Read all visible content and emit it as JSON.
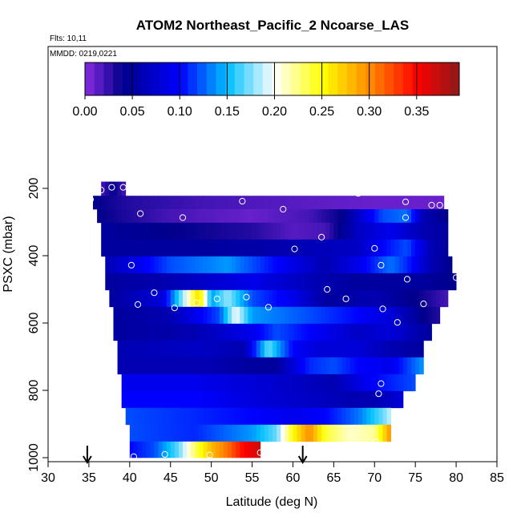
{
  "title": "ATOM2 Northeast_Pacific_2 Ncoarse_LAS",
  "flights_label": "Flts: 10,11",
  "mmdd_label": "MMDD: 0219,0221",
  "chart_data": {
    "type": "heatmap",
    "xlabel": "Latitude (deg N)",
    "ylabel": "PSXC (mbar)",
    "xlim": [
      30,
      85
    ],
    "ylim": [
      1000,
      100
    ],
    "x_ticks": [
      30,
      35,
      40,
      45,
      50,
      55,
      60,
      65,
      70,
      75,
      80,
      85
    ],
    "y_ticks": [
      200,
      400,
      600,
      800,
      1000
    ],
    "colorbar": {
      "range": [
        0,
        0.395
      ],
      "ticks": [
        0.0,
        0.05,
        0.1,
        0.15,
        0.2,
        0.25,
        0.3,
        0.35
      ],
      "tick_labels": [
        "0.00",
        "0.05",
        "0.10",
        "0.15",
        "0.20",
        "0.25",
        "0.30",
        "0.35"
      ],
      "stops": [
        {
          "v": 0.0,
          "color": "#8a2be2"
        },
        {
          "v": 0.04,
          "color": "#00008b"
        },
        {
          "v": 0.1,
          "color": "#0000ff"
        },
        {
          "v": 0.15,
          "color": "#00bfff"
        },
        {
          "v": 0.2,
          "color": "#ffffff"
        },
        {
          "v": 0.25,
          "color": "#ffff00"
        },
        {
          "v": 0.3,
          "color": "#ff8c00"
        },
        {
          "v": 0.35,
          "color": "#ff0000"
        },
        {
          "v": 0.395,
          "color": "#8b1a1a"
        }
      ]
    },
    "bands": [
      {
        "p0": 180,
        "p1": 222,
        "lat0": 36.5,
        "lat1": 39.5,
        "cells": [
          [
            36.5,
            0.02
          ],
          [
            38.0,
            0.04
          ],
          [
            39.5,
            0.02
          ]
        ]
      },
      {
        "p0": 222,
        "p1": 262,
        "lat0": 35.5,
        "lat1": 78.5,
        "cells": [
          [
            35.5,
            0.04
          ],
          [
            40,
            0.03
          ],
          [
            50,
            0.02
          ],
          [
            60,
            0.015
          ],
          [
            70,
            0.01
          ],
          [
            78.5,
            0.01
          ]
        ]
      },
      {
        "p0": 262,
        "p1": 302,
        "lat0": 36.0,
        "lat1": 79.0,
        "cells": [
          [
            36,
            0.04
          ],
          [
            45,
            0.02
          ],
          [
            55,
            0.01
          ],
          [
            62,
            0.02
          ],
          [
            66,
            0.04
          ],
          [
            71,
            0.12
          ],
          [
            74,
            0.13
          ],
          [
            76,
            0.06
          ],
          [
            79,
            0.04
          ]
        ]
      },
      {
        "p0": 302,
        "p1": 352,
        "lat0": 36.5,
        "lat1": 79.0,
        "cells": [
          [
            36.5,
            0.05
          ],
          [
            45,
            0.04
          ],
          [
            55,
            0.03
          ],
          [
            60,
            0.015
          ],
          [
            64,
            0.02
          ],
          [
            68,
            0.07
          ],
          [
            72,
            0.09
          ],
          [
            76,
            0.06
          ],
          [
            79,
            0.05
          ]
        ]
      },
      {
        "p0": 352,
        "p1": 402,
        "lat0": 36.5,
        "lat1": 79.0,
        "cells": [
          [
            36.5,
            0.05
          ],
          [
            50,
            0.05
          ],
          [
            60,
            0.06
          ],
          [
            68,
            0.07
          ],
          [
            71,
            0.1
          ],
          [
            74,
            0.12
          ],
          [
            77,
            0.06
          ],
          [
            79,
            0.05
          ]
        ]
      },
      {
        "p0": 402,
        "p1": 452,
        "lat0": 37.0,
        "lat1": 79.5,
        "cells": [
          [
            37,
            0.06
          ],
          [
            45,
            0.12
          ],
          [
            52,
            0.14
          ],
          [
            58,
            0.1
          ],
          [
            64,
            0.06
          ],
          [
            68,
            0.09
          ],
          [
            72,
            0.13
          ],
          [
            74,
            0.11
          ],
          [
            77,
            0.06
          ],
          [
            79.5,
            0.04
          ]
        ]
      },
      {
        "p0": 452,
        "p1": 502,
        "lat0": 37.0,
        "lat1": 80.0,
        "cells": [
          [
            37,
            0.05
          ],
          [
            45,
            0.06
          ],
          [
            55,
            0.09
          ],
          [
            63,
            0.06
          ],
          [
            68,
            0.05
          ],
          [
            73,
            0.05
          ],
          [
            76,
            0.05
          ],
          [
            80,
            0.04
          ]
        ]
      },
      {
        "p0": 502,
        "p1": 552,
        "lat0": 37.5,
        "lat1": 79.0,
        "cells": [
          [
            37.5,
            0.05
          ],
          [
            44,
            0.08
          ],
          [
            47,
            0.2
          ],
          [
            48.5,
            0.27
          ],
          [
            50,
            0.14
          ],
          [
            52,
            0.18
          ],
          [
            55,
            0.12
          ],
          [
            60,
            0.09
          ],
          [
            64,
            0.05
          ],
          [
            70,
            0.06
          ],
          [
            75,
            0.04
          ],
          [
            79,
            0.02
          ]
        ]
      },
      {
        "p0": 552,
        "p1": 602,
        "lat0": 38.0,
        "lat1": 78.0,
        "cells": [
          [
            38,
            0.05
          ],
          [
            45,
            0.06
          ],
          [
            51,
            0.12
          ],
          [
            53,
            0.2
          ],
          [
            55,
            0.14
          ],
          [
            62,
            0.12
          ],
          [
            68,
            0.1
          ],
          [
            72,
            0.08
          ],
          [
            76,
            0.04
          ],
          [
            78,
            0.03
          ]
        ]
      },
      {
        "p0": 602,
        "p1": 652,
        "lat0": 38.0,
        "lat1": 77.0,
        "cells": [
          [
            38,
            0.05
          ],
          [
            48,
            0.06
          ],
          [
            55,
            0.09
          ],
          [
            58,
            0.12
          ],
          [
            62,
            0.1
          ],
          [
            68,
            0.07
          ],
          [
            72,
            0.08
          ],
          [
            75,
            0.06
          ],
          [
            77,
            0.05
          ]
        ]
      },
      {
        "p0": 652,
        "p1": 702,
        "lat0": 38.5,
        "lat1": 76.0,
        "cells": [
          [
            38.5,
            0.06
          ],
          [
            48,
            0.07
          ],
          [
            54,
            0.06
          ],
          [
            57,
            0.17
          ],
          [
            60,
            0.1
          ],
          [
            63,
            0.08
          ],
          [
            68,
            0.08
          ],
          [
            72,
            0.06
          ],
          [
            76,
            0.05
          ]
        ]
      },
      {
        "p0": 702,
        "p1": 752,
        "lat0": 38.5,
        "lat1": 76.0,
        "cells": [
          [
            38.5,
            0.06
          ],
          [
            50,
            0.06
          ],
          [
            55,
            0.05
          ],
          [
            58,
            0.05
          ],
          [
            62,
            0.11
          ],
          [
            65,
            0.12
          ],
          [
            68,
            0.1
          ],
          [
            72,
            0.09
          ],
          [
            76,
            0.14
          ]
        ]
      },
      {
        "p0": 752,
        "p1": 802,
        "lat0": 39.0,
        "lat1": 75.0,
        "cells": [
          [
            39,
            0.09
          ],
          [
            48,
            0.09
          ],
          [
            55,
            0.08
          ],
          [
            60,
            0.07
          ],
          [
            65,
            0.06
          ],
          [
            70,
            0.1
          ],
          [
            75,
            0.12
          ]
        ]
      },
      {
        "p0": 802,
        "p1": 852,
        "lat0": 39.0,
        "lat1": 73.5,
        "cells": [
          [
            39,
            0.1
          ],
          [
            48,
            0.1
          ],
          [
            56,
            0.08
          ],
          [
            62,
            0.07
          ],
          [
            67,
            0.06
          ],
          [
            70,
            0.06
          ],
          [
            73.5,
            0.08
          ]
        ]
      },
      {
        "p0": 852,
        "p1": 902,
        "lat0": 39.5,
        "lat1": 72.0,
        "cells": [
          [
            39.5,
            0.12
          ],
          [
            48,
            0.11
          ],
          [
            55,
            0.1
          ],
          [
            60,
            0.09
          ],
          [
            64,
            0.1
          ],
          [
            68,
            0.13
          ],
          [
            71,
            0.17
          ],
          [
            72,
            0.19
          ]
        ]
      },
      {
        "p0": 902,
        "p1": 952,
        "lat0": 40.0,
        "lat1": 72.0,
        "cells": [
          [
            40,
            0.12
          ],
          [
            48,
            0.11
          ],
          [
            55,
            0.14
          ],
          [
            58,
            0.17
          ],
          [
            60,
            0.25
          ],
          [
            62,
            0.3
          ],
          [
            64,
            0.24
          ],
          [
            67,
            0.21
          ],
          [
            70,
            0.22
          ],
          [
            72,
            0.3
          ]
        ]
      },
      {
        "p0": 952,
        "p1": 1000,
        "lat0": 40.0,
        "lat1": 56.0,
        "cells": [
          [
            40,
            0.1
          ],
          [
            43,
            0.12
          ],
          [
            46,
            0.17
          ],
          [
            48,
            0.23
          ],
          [
            50,
            0.28
          ],
          [
            52,
            0.31
          ],
          [
            54,
            0.35
          ],
          [
            56,
            0.37
          ]
        ]
      }
    ],
    "points": [
      [
        35.2,
        233
      ],
      [
        36.5,
        205
      ],
      [
        37.8,
        197
      ],
      [
        39.2,
        197
      ],
      [
        53.8,
        238
      ],
      [
        68.0,
        215
      ],
      [
        73.8,
        240
      ],
      [
        77.0,
        250
      ],
      [
        78.0,
        250
      ],
      [
        41.3,
        275
      ],
      [
        46.5,
        287
      ],
      [
        58.8,
        262
      ],
      [
        73.8,
        287
      ],
      [
        63.5,
        345
      ],
      [
        60.2,
        380
      ],
      [
        70.0,
        378
      ],
      [
        40.2,
        428
      ],
      [
        70.8,
        428
      ],
      [
        74.0,
        470
      ],
      [
        80.0,
        465
      ],
      [
        43.0,
        510
      ],
      [
        64.2,
        500
      ],
      [
        41.0,
        545
      ],
      [
        45.5,
        555
      ],
      [
        48.2,
        540
      ],
      [
        50.7,
        528
      ],
      [
        54.3,
        523
      ],
      [
        57.0,
        553
      ],
      [
        66.5,
        528
      ],
      [
        71.0,
        558
      ],
      [
        76.0,
        543
      ],
      [
        72.8,
        598
      ],
      [
        70.8,
        780
      ],
      [
        70.5,
        810
      ],
      [
        70.2,
        953
      ],
      [
        40.5,
        997
      ],
      [
        44.3,
        990
      ],
      [
        49.8,
        992
      ],
      [
        56.0,
        985
      ]
    ],
    "arrows": [
      34.8,
      61.2
    ]
  }
}
